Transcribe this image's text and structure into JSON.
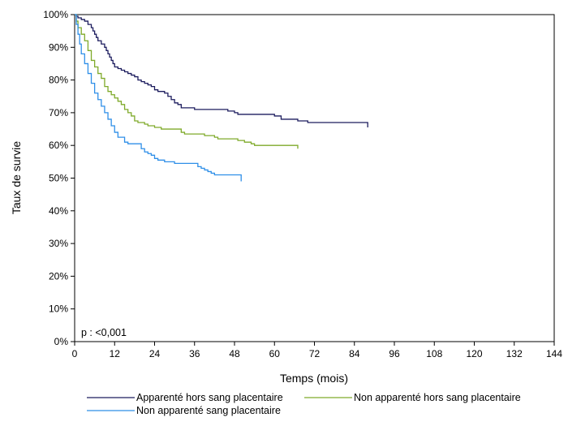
{
  "chart_data": {
    "type": "line",
    "step": true,
    "xlabel": "Temps (mois)",
    "ylabel": "Taux de survie",
    "xlim": [
      0,
      144
    ],
    "ylim": [
      0,
      100
    ],
    "x_ticks": [
      0,
      12,
      24,
      36,
      48,
      60,
      72,
      84,
      96,
      108,
      120,
      132,
      144
    ],
    "y_ticks": [
      0,
      10,
      20,
      30,
      40,
      50,
      60,
      70,
      80,
      90,
      100
    ],
    "y_tick_suffix": "%",
    "grid": false,
    "annotation": "p : <0,001",
    "legend_position": "bottom",
    "series": [
      {
        "name": "Apparenté hors sang placentaire",
        "color": "#1c1c5e",
        "points": [
          [
            0,
            100
          ],
          [
            0.5,
            99.5
          ],
          [
            1,
            99
          ],
          [
            2,
            98.5
          ],
          [
            3,
            98
          ],
          [
            4,
            97
          ],
          [
            5,
            96
          ],
          [
            5.5,
            95
          ],
          [
            6,
            94
          ],
          [
            6.5,
            93
          ],
          [
            7,
            92
          ],
          [
            8,
            91
          ],
          [
            9,
            90
          ],
          [
            9.5,
            89
          ],
          [
            10,
            88
          ],
          [
            10.5,
            87
          ],
          [
            11,
            86
          ],
          [
            11.5,
            85
          ],
          [
            12,
            84
          ],
          [
            13,
            83.5
          ],
          [
            14,
            83
          ],
          [
            15,
            82.5
          ],
          [
            16,
            82
          ],
          [
            17,
            81.5
          ],
          [
            18,
            81
          ],
          [
            19,
            80
          ],
          [
            20,
            79.5
          ],
          [
            21,
            79
          ],
          [
            22,
            78.5
          ],
          [
            23,
            78
          ],
          [
            24,
            77
          ],
          [
            25,
            76.5
          ],
          [
            27,
            76
          ],
          [
            28,
            75
          ],
          [
            29,
            74
          ],
          [
            30,
            73
          ],
          [
            31,
            72.5
          ],
          [
            32,
            71.5
          ],
          [
            35,
            71.5
          ],
          [
            36,
            71
          ],
          [
            45,
            71
          ],
          [
            46,
            70.5
          ],
          [
            48,
            70
          ],
          [
            49,
            69.5
          ],
          [
            58,
            69.5
          ],
          [
            60,
            69
          ],
          [
            62,
            68
          ],
          [
            65,
            68
          ],
          [
            67,
            67.5
          ],
          [
            70,
            67
          ],
          [
            88,
            67
          ],
          [
            88,
            65.5
          ]
        ]
      },
      {
        "name": "Non apparenté hors sang placentaire",
        "color": "#7faa2a",
        "points": [
          [
            0,
            100
          ],
          [
            0.5,
            98
          ],
          [
            1,
            96
          ],
          [
            2,
            94
          ],
          [
            3,
            92
          ],
          [
            4,
            89
          ],
          [
            5,
            86
          ],
          [
            6,
            84
          ],
          [
            7,
            82
          ],
          [
            8,
            80.5
          ],
          [
            9,
            78
          ],
          [
            10,
            76.5
          ],
          [
            11,
            75.5
          ],
          [
            12,
            74.5
          ],
          [
            13,
            73.5
          ],
          [
            14,
            72.5
          ],
          [
            15,
            71
          ],
          [
            16,
            70
          ],
          [
            17,
            69
          ],
          [
            18,
            67.5
          ],
          [
            19,
            67
          ],
          [
            21,
            66.5
          ],
          [
            22,
            66
          ],
          [
            24,
            65.5
          ],
          [
            26,
            65
          ],
          [
            31,
            65
          ],
          [
            32,
            64
          ],
          [
            33,
            63.5
          ],
          [
            38,
            63.5
          ],
          [
            39,
            63
          ],
          [
            42,
            62.5
          ],
          [
            43,
            62
          ],
          [
            48,
            62
          ],
          [
            49,
            61.5
          ],
          [
            51,
            61
          ],
          [
            53,
            60.5
          ],
          [
            54,
            60
          ],
          [
            66,
            60
          ],
          [
            67,
            59
          ]
        ]
      },
      {
        "name": "Non apparenté sang placentaire",
        "color": "#2f8fe8",
        "points": [
          [
            0,
            100
          ],
          [
            0.5,
            97
          ],
          [
            1,
            94
          ],
          [
            1.5,
            91
          ],
          [
            2,
            88
          ],
          [
            3,
            85
          ],
          [
            4,
            82
          ],
          [
            5,
            79
          ],
          [
            6,
            76
          ],
          [
            7,
            74
          ],
          [
            8,
            72
          ],
          [
            9,
            70
          ],
          [
            10,
            68
          ],
          [
            11,
            66
          ],
          [
            12,
            64
          ],
          [
            13,
            62.5
          ],
          [
            15,
            61
          ],
          [
            16,
            60.5
          ],
          [
            19,
            60.5
          ],
          [
            20,
            59
          ],
          [
            21,
            58
          ],
          [
            22,
            57.5
          ],
          [
            23,
            57
          ],
          [
            24,
            56
          ],
          [
            25,
            55.5
          ],
          [
            27,
            55
          ],
          [
            30,
            54.5
          ],
          [
            36,
            54.5
          ],
          [
            37,
            53.5
          ],
          [
            38,
            53
          ],
          [
            39,
            52.5
          ],
          [
            40,
            52
          ],
          [
            41,
            51.5
          ],
          [
            42,
            51
          ],
          [
            49,
            51
          ],
          [
            50,
            50.5
          ],
          [
            50,
            49
          ]
        ]
      }
    ]
  }
}
